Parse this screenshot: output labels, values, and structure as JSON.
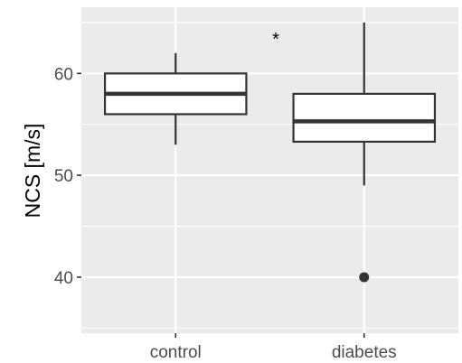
{
  "chart_data": {
    "type": "boxplot",
    "ylabel": "NCS [m/s]",
    "xlabel": "",
    "ylim": [
      34.5,
      66.5
    ],
    "yticks": [
      40,
      50,
      60
    ],
    "categories": [
      "control",
      "diabetes"
    ],
    "boxes": [
      {
        "category": "control",
        "whisker_low": 53,
        "q1": 56,
        "median": 58,
        "q3": 60,
        "whisker_high": 62,
        "outliers": []
      },
      {
        "category": "diabetes",
        "whisker_low": 49,
        "q1": 53.3,
        "median": 55.3,
        "q3": 58,
        "whisker_high": 65,
        "outliers": [
          40
        ]
      }
    ],
    "annotation": "*",
    "grid": true,
    "colors": {
      "panel": "#ebebeb",
      "grid": "#ffffff",
      "box_fill": "#ffffff",
      "box_stroke": "#333333",
      "outlier": "#333333",
      "tick": "#4d4d4d"
    }
  }
}
